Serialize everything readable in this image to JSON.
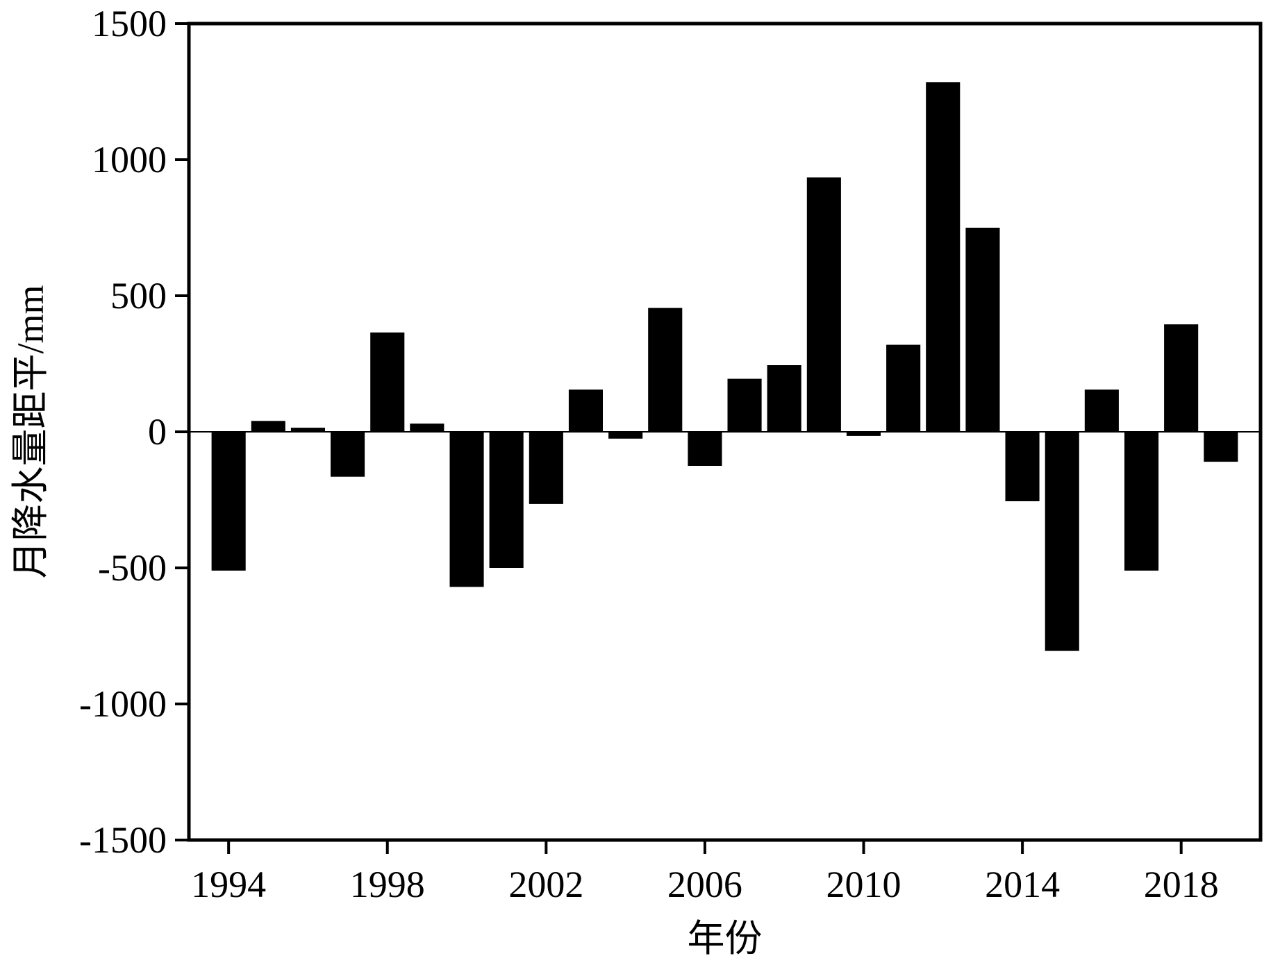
{
  "chart_data": {
    "type": "bar",
    "title": "",
    "xlabel": "年份",
    "ylabel": "月降水量距平/mm",
    "x": [
      1994,
      1995,
      1996,
      1997,
      1998,
      1999,
      2000,
      2001,
      2002,
      2003,
      2004,
      2005,
      2006,
      2007,
      2008,
      2009,
      2010,
      2011,
      2012,
      2013,
      2014,
      2015,
      2016,
      2017,
      2018,
      2019
    ],
    "values": [
      -510,
      40,
      15,
      -165,
      365,
      30,
      -570,
      -500,
      -265,
      155,
      -25,
      455,
      -125,
      195,
      245,
      935,
      -15,
      320,
      1285,
      750,
      -255,
      -805,
      155,
      -510,
      395,
      -110
    ],
    "xlim": [
      1993,
      2020
    ],
    "ylim": [
      -1500,
      1500
    ],
    "xticks": [
      "1994",
      "1998",
      "2002",
      "2006",
      "2010",
      "2014",
      "2018"
    ],
    "yticks": [
      "-1500",
      "-1000",
      "-500",
      "0",
      "500",
      "1000",
      "1500"
    ],
    "grid": false,
    "legend": "none",
    "bar_color": "#000000"
  }
}
